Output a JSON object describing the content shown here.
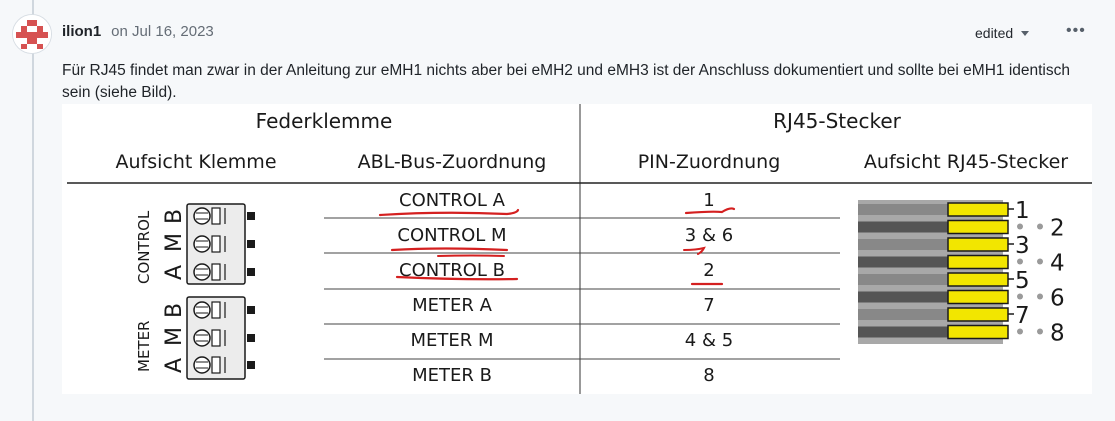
{
  "comment": {
    "author": "ilion1",
    "date": "on Jul 16, 2023",
    "edited_label": "edited",
    "more_menu_glyph": "•••",
    "body_text": "Für RJ45 findet man zwar in der Anleitung zur eMH1 nichts aber bei eMH2 und eMH3 ist der Anschluss dokumentiert und sollte bei eMH1 identisch sein (siehe Bild)."
  },
  "diagram": {
    "header_group_left": "Federklemme",
    "header_group_right": "RJ45-Stecker",
    "col_headers": [
      "Aufsicht Klemme",
      "ABL-Bus-Zuordnung",
      "PIN-Zuordnung",
      "Aufsicht RJ45-Stecker"
    ],
    "rows": [
      {
        "bus": "CONTROL A",
        "pins": "1",
        "underlined": true
      },
      {
        "bus": "CONTROL M",
        "pins": "3 & 6",
        "underlined": true
      },
      {
        "bus": "CONTROL B",
        "pins": "2",
        "underlined": true
      },
      {
        "bus": "METER A",
        "pins": "7",
        "underlined": false
      },
      {
        "bus": "METER M",
        "pins": "4 & 5",
        "underlined": false
      },
      {
        "bus": "METER B",
        "pins": "8",
        "underlined": false
      }
    ],
    "terminal_group_labels": [
      "CONTROL",
      "METER"
    ],
    "terminal_letters": [
      "B",
      "M",
      "A",
      "B",
      "M",
      "A"
    ],
    "rj45_pin_labels_left": [
      "1",
      "3",
      "5",
      "7"
    ],
    "rj45_pin_labels_right": [
      "2",
      "4",
      "6",
      "8"
    ],
    "annotation_color": "#d42020",
    "contact_color": "#f2e600"
  }
}
